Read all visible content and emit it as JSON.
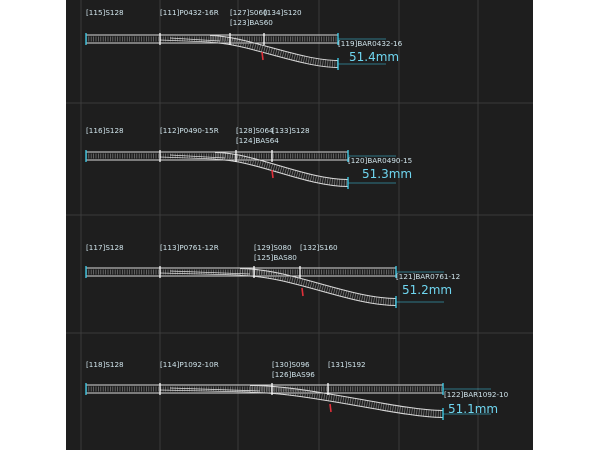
{
  "diagram": {
    "colors": {
      "background": "#1e1e1e",
      "grid": "#3b3b3b",
      "track": "#d9d9d9",
      "sleeper": "#8a8a8a",
      "label": "#cfe3ea",
      "dimension": "#6fd6f0",
      "connector": "#3fd0ee",
      "marker": "#e0303a"
    },
    "layouts": [
      {
        "labels": {
          "straight1": "[115]S128",
          "turnout": "[111]P0432-16R",
          "pieceA": "[127]S060",
          "pieceB": "[134]S120",
          "pieceC": "[123]BAS60",
          "branch": "[119]BAR0432-16"
        },
        "offset": "51.4mm"
      },
      {
        "labels": {
          "straight1": "[116]S128",
          "turnout": "[112]P0490-15R",
          "pieceA": "[128]S064",
          "pieceB": "[133]S128",
          "pieceC": "[124]BAS64",
          "branch": "[120]BAR0490-15"
        },
        "offset": "51.3mm"
      },
      {
        "labels": {
          "straight1": "[117]S128",
          "turnout": "[113]P0761-12R",
          "pieceA": "[129]S080",
          "pieceB": "[132]S160",
          "pieceC": "[125]BAS80",
          "branch": "[121]BAR0761-12"
        },
        "offset": "51.2mm"
      },
      {
        "labels": {
          "straight1": "[118]S128",
          "turnout": "[114]P1092-10R",
          "pieceA": "[130]S096",
          "pieceB": "[131]S192",
          "pieceC": "[126]BAS96",
          "branch": "[122]BAR1092-10"
        },
        "offset": "51.1mm"
      }
    ]
  }
}
